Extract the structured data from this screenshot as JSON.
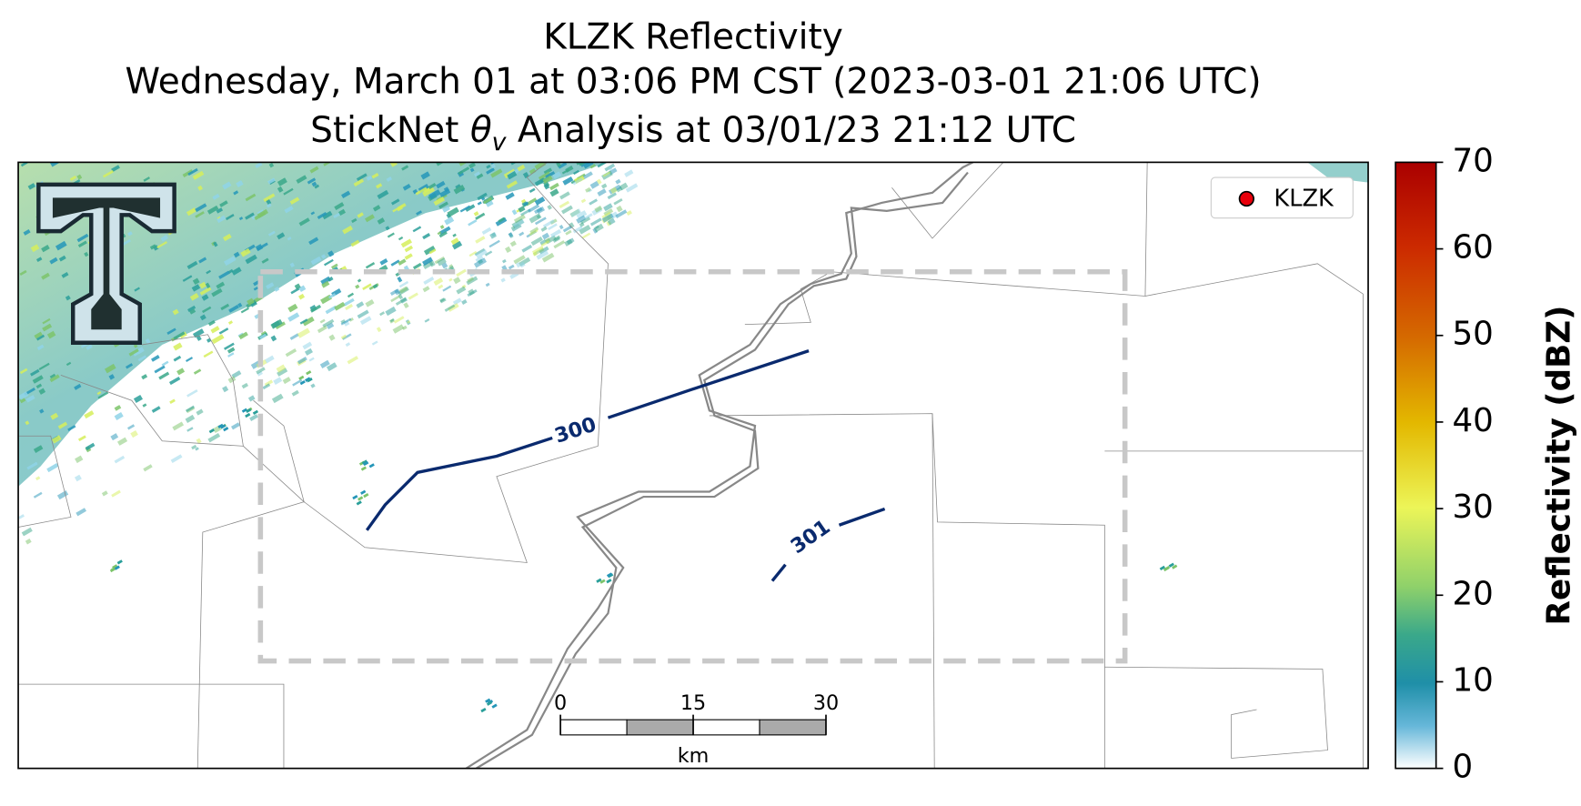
{
  "header": {
    "title_line1": "KLZK Reflectivity",
    "title_line2": "Wednesday, March 01 at 03:06 PM CST (2023-03-01 21:06 UTC)",
    "title_line3": {
      "prefix": "StickNet ",
      "symbol": "θ",
      "subscript": "v",
      "suffix": " Analysis at 03/01/23 21:12 UTC"
    }
  },
  "legend": {
    "entries": [
      "KLZK"
    ],
    "corner": "upper right",
    "marker_color": "#e8000b"
  },
  "contours": [
    {
      "label": 300
    },
    {
      "label": 301
    }
  ],
  "scale_bar": {
    "ticks": [
      0,
      15,
      30
    ],
    "unit": "km"
  },
  "colorbar": {
    "label": "Reflectivity (dBZ)",
    "lim": [
      0,
      70
    ],
    "ticks": [
      0,
      10,
      20,
      30,
      40,
      50,
      60,
      70
    ]
  }
}
